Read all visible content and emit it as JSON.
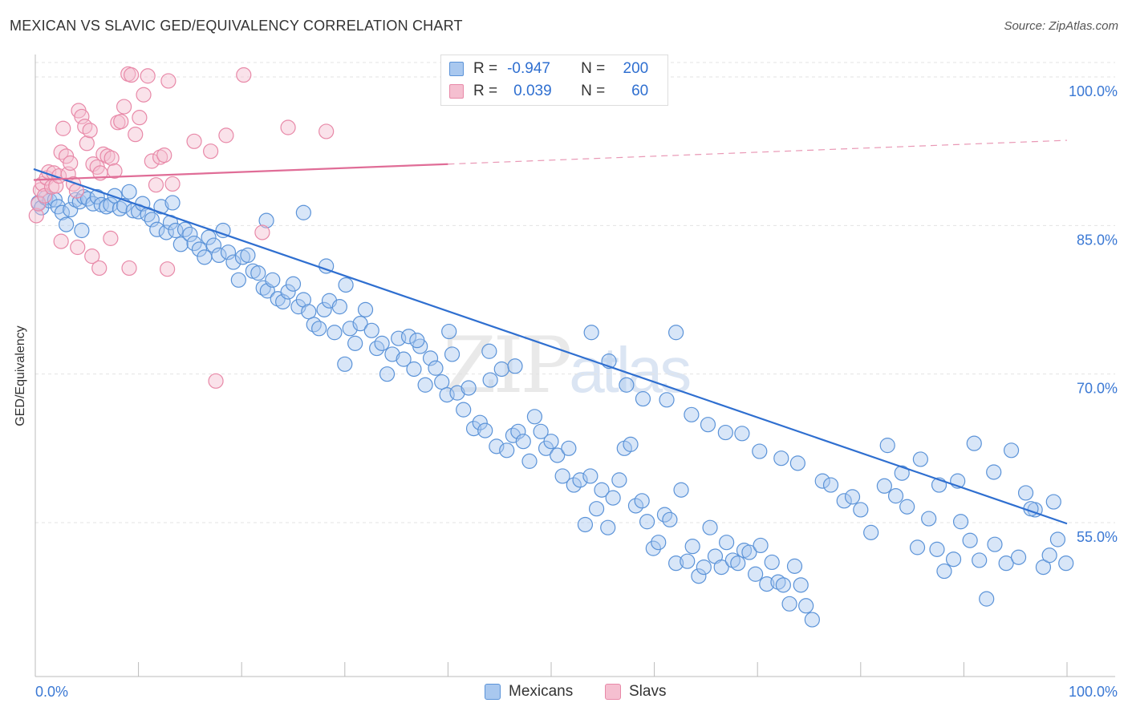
{
  "title": "MEXICAN VS SLAVIC GED/EQUIVALENCY CORRELATION CHART",
  "source": "Source: ZipAtlas.com",
  "watermark": {
    "zip": "ZIP",
    "atlas": "atlas"
  },
  "legend": {
    "rows": [
      {
        "r_label": "R =",
        "r_value": "-0.947",
        "n_label": "N =",
        "n_value": "200"
      },
      {
        "r_label": "R =",
        "r_value": "0.039",
        "n_label": "N =",
        "n_value": "60"
      }
    ]
  },
  "colors": {
    "mexicans_fill": "#a9c8ef",
    "mexicans_stroke": "#5b93d8",
    "mexicans_line": "#2f6fd0",
    "slavs_fill": "#f5bfd0",
    "slavs_stroke": "#e889a8",
    "slavs_line": "#e06d97",
    "axis_text": "#3a78d4"
  },
  "chart_data": {
    "type": "scatter",
    "title": "MEXICAN VS SLAVIC GED/EQUIVALENCY CORRELATION CHART",
    "xlabel": "",
    "ylabel": "GED/Equivalency",
    "xlim": [
      0,
      100
    ],
    "ylim": [
      40,
      102
    ],
    "x_tick_labels": [
      "0.0%",
      "100.0%"
    ],
    "y_ticks": [
      55,
      70,
      85,
      100
    ],
    "y_tick_labels": [
      "55.0%",
      "70.0%",
      "85.0%",
      "100.0%"
    ],
    "grid": "horizontal dashed",
    "legend_position": "bottom-center",
    "series": [
      {
        "name": "Mexicans",
        "trend": {
          "x": [
            0,
            100
          ],
          "y": [
            90.7,
            54.9
          ],
          "style": "solid"
        },
        "points": [
          [
            0.3,
            87.3
          ],
          [
            0.6,
            86.8
          ],
          [
            1.0,
            87.8
          ],
          [
            1.4,
            87.5
          ],
          [
            1.9,
            87.6
          ],
          [
            2.2,
            86.9
          ],
          [
            2.6,
            86.3
          ],
          [
            3.0,
            85.1
          ],
          [
            3.4,
            86.6
          ],
          [
            3.9,
            87.6
          ],
          [
            4.3,
            87.4
          ],
          [
            4.7,
            87.9
          ],
          [
            5.1,
            87.7
          ],
          [
            5.6,
            87.2
          ],
          [
            6.0,
            87.9
          ],
          [
            6.4,
            87.1
          ],
          [
            6.9,
            86.9
          ],
          [
            7.3,
            87.1
          ],
          [
            7.7,
            88.0
          ],
          [
            8.2,
            86.7
          ],
          [
            8.6,
            87.0
          ],
          [
            9.1,
            88.4
          ],
          [
            9.5,
            86.5
          ],
          [
            10.0,
            86.4
          ],
          [
            10.4,
            87.2
          ],
          [
            10.9,
            86.1
          ],
          [
            11.3,
            85.6
          ],
          [
            11.8,
            84.6
          ],
          [
            12.2,
            86.9
          ],
          [
            12.7,
            84.3
          ],
          [
            13.1,
            85.3
          ],
          [
            13.6,
            84.5
          ],
          [
            14.1,
            83.1
          ],
          [
            14.5,
            84.6
          ],
          [
            15.0,
            84.1
          ],
          [
            15.4,
            83.2
          ],
          [
            15.9,
            82.6
          ],
          [
            16.4,
            81.8
          ],
          [
            16.8,
            83.8
          ],
          [
            17.3,
            83.0
          ],
          [
            17.8,
            82.0
          ],
          [
            18.2,
            84.5
          ],
          [
            18.7,
            82.3
          ],
          [
            19.2,
            81.3
          ],
          [
            19.7,
            79.5
          ],
          [
            20.1,
            81.8
          ],
          [
            20.6,
            82.0
          ],
          [
            21.1,
            80.4
          ],
          [
            21.6,
            80.2
          ],
          [
            22.1,
            78.7
          ],
          [
            22.5,
            78.4
          ],
          [
            23.0,
            79.5
          ],
          [
            23.5,
            77.6
          ],
          [
            24.0,
            77.3
          ],
          [
            24.5,
            78.3
          ],
          [
            25.0,
            79.1
          ],
          [
            25.5,
            76.8
          ],
          [
            26.0,
            77.5
          ],
          [
            26.5,
            76.3
          ],
          [
            27.0,
            75.0
          ],
          [
            27.5,
            74.6
          ],
          [
            28.0,
            76.5
          ],
          [
            28.5,
            77.4
          ],
          [
            29.0,
            74.2
          ],
          [
            29.5,
            76.8
          ],
          [
            30.0,
            71.0
          ],
          [
            30.5,
            74.6
          ],
          [
            31.0,
            73.1
          ],
          [
            31.5,
            75.1
          ],
          [
            32.0,
            76.5
          ],
          [
            32.6,
            74.4
          ],
          [
            33.1,
            72.6
          ],
          [
            33.6,
            73.1
          ],
          [
            34.1,
            70.0
          ],
          [
            34.6,
            72.0
          ],
          [
            35.2,
            73.6
          ],
          [
            35.7,
            71.5
          ],
          [
            36.2,
            73.8
          ],
          [
            36.7,
            70.5
          ],
          [
            37.3,
            72.8
          ],
          [
            37.8,
            68.9
          ],
          [
            38.3,
            71.6
          ],
          [
            38.8,
            70.6
          ],
          [
            39.4,
            69.2
          ],
          [
            39.9,
            67.9
          ],
          [
            40.4,
            72.0
          ],
          [
            40.9,
            68.1
          ],
          [
            41.5,
            66.4
          ],
          [
            42.0,
            68.6
          ],
          [
            42.5,
            64.5
          ],
          [
            43.1,
            65.1
          ],
          [
            43.6,
            64.3
          ],
          [
            44.1,
            69.4
          ],
          [
            44.7,
            62.7
          ],
          [
            45.2,
            70.5
          ],
          [
            45.7,
            62.3
          ],
          [
            46.3,
            63.8
          ],
          [
            46.8,
            64.2
          ],
          [
            47.3,
            63.2
          ],
          [
            47.9,
            61.2
          ],
          [
            48.4,
            65.7
          ],
          [
            49.0,
            64.2
          ],
          [
            49.5,
            62.5
          ],
          [
            50.0,
            63.2
          ],
          [
            50.6,
            61.8
          ],
          [
            51.1,
            59.7
          ],
          [
            51.7,
            62.5
          ],
          [
            52.2,
            58.8
          ],
          [
            52.8,
            59.3
          ],
          [
            53.3,
            54.8
          ],
          [
            53.8,
            59.7
          ],
          [
            54.4,
            56.4
          ],
          [
            54.9,
            58.3
          ],
          [
            55.5,
            54.5
          ],
          [
            56.0,
            57.5
          ],
          [
            56.6,
            59.3
          ],
          [
            57.1,
            62.5
          ],
          [
            57.7,
            62.9
          ],
          [
            58.2,
            56.7
          ],
          [
            58.8,
            57.2
          ],
          [
            59.3,
            55.1
          ],
          [
            59.9,
            52.4
          ],
          [
            60.4,
            53.0
          ],
          [
            61.0,
            55.8
          ],
          [
            61.5,
            55.3
          ],
          [
            62.1,
            50.9
          ],
          [
            62.6,
            58.3
          ],
          [
            63.2,
            51.1
          ],
          [
            63.7,
            52.6
          ],
          [
            64.3,
            49.6
          ],
          [
            64.8,
            50.5
          ],
          [
            65.4,
            54.5
          ],
          [
            65.9,
            51.6
          ],
          [
            66.5,
            50.5
          ],
          [
            67.0,
            53.0
          ],
          [
            67.6,
            51.2
          ],
          [
            68.1,
            50.9
          ],
          [
            68.7,
            52.2
          ],
          [
            69.2,
            52.0
          ],
          [
            69.8,
            49.8
          ],
          [
            70.3,
            52.7
          ],
          [
            70.9,
            48.8
          ],
          [
            71.4,
            51.0
          ],
          [
            72.0,
            49.0
          ],
          [
            72.5,
            48.7
          ],
          [
            73.1,
            46.8
          ],
          [
            73.6,
            50.6
          ],
          [
            74.2,
            48.7
          ],
          [
            74.7,
            46.6
          ],
          [
            75.3,
            45.2
          ],
          [
            4.5,
            84.5
          ],
          [
            13.3,
            87.3
          ],
          [
            22.4,
            85.5
          ],
          [
            26.0,
            86.3
          ],
          [
            28.2,
            80.9
          ],
          [
            30.1,
            79.0
          ],
          [
            37.0,
            73.4
          ],
          [
            40.1,
            74.3
          ],
          [
            44.0,
            72.3
          ],
          [
            46.5,
            70.8
          ],
          [
            53.9,
            74.2
          ],
          [
            55.6,
            71.3
          ],
          [
            57.3,
            68.9
          ],
          [
            58.9,
            67.5
          ],
          [
            61.2,
            67.4
          ],
          [
            62.1,
            74.2
          ],
          [
            63.6,
            65.9
          ],
          [
            65.2,
            64.9
          ],
          [
            66.9,
            64.1
          ],
          [
            68.5,
            64.0
          ],
          [
            70.2,
            62.2
          ],
          [
            72.3,
            61.5
          ],
          [
            73.9,
            61.0
          ],
          [
            76.3,
            59.2
          ],
          [
            77.1,
            58.8
          ],
          [
            78.4,
            57.2
          ],
          [
            79.2,
            57.6
          ],
          [
            80.0,
            56.3
          ],
          [
            81.0,
            54.0
          ],
          [
            82.3,
            58.7
          ],
          [
            83.4,
            57.7
          ],
          [
            84.5,
            56.6
          ],
          [
            85.5,
            52.5
          ],
          [
            86.6,
            55.4
          ],
          [
            87.4,
            52.3
          ],
          [
            88.1,
            50.1
          ],
          [
            89.0,
            51.3
          ],
          [
            89.7,
            55.1
          ],
          [
            90.6,
            53.2
          ],
          [
            91.5,
            51.2
          ],
          [
            92.2,
            47.3
          ],
          [
            93.0,
            52.8
          ],
          [
            94.1,
            50.9
          ],
          [
            95.3,
            51.5
          ],
          [
            96.0,
            58.0
          ],
          [
            96.9,
            56.3
          ],
          [
            97.7,
            50.5
          ],
          [
            98.3,
            51.7
          ],
          [
            99.1,
            53.3
          ],
          [
            99.9,
            50.9
          ],
          [
            82.6,
            62.8
          ],
          [
            84.0,
            60.0
          ],
          [
            85.8,
            61.4
          ],
          [
            87.6,
            58.8
          ],
          [
            89.4,
            59.2
          ],
          [
            91.0,
            63.0
          ],
          [
            92.9,
            60.1
          ],
          [
            94.6,
            62.3
          ],
          [
            96.5,
            56.4
          ],
          [
            98.7,
            57.1
          ]
        ]
      },
      {
        "name": "Slavs",
        "trend": {
          "x": [
            0,
            40
          ],
          "y": [
            89.6,
            91.2
          ],
          "style": "solid",
          "extension": {
            "x": [
              40,
              100
            ],
            "y": [
              91.2,
              93.6
            ],
            "style": "dashed"
          }
        },
        "points": [
          [
            0.1,
            86.0
          ],
          [
            0.3,
            87.2
          ],
          [
            0.5,
            88.6
          ],
          [
            0.7,
            89.2
          ],
          [
            0.9,
            88.0
          ],
          [
            1.1,
            89.8
          ],
          [
            1.3,
            90.4
          ],
          [
            1.6,
            88.9
          ],
          [
            1.8,
            90.3
          ],
          [
            2.0,
            89.0
          ],
          [
            2.3,
            90.0
          ],
          [
            2.5,
            92.4
          ],
          [
            2.7,
            94.8
          ],
          [
            3.0,
            92.0
          ],
          [
            3.2,
            90.2
          ],
          [
            3.4,
            91.3
          ],
          [
            3.7,
            89.2
          ],
          [
            4.0,
            88.5
          ],
          [
            4.2,
            96.6
          ],
          [
            4.5,
            96.0
          ],
          [
            4.8,
            95.0
          ],
          [
            5.0,
            93.3
          ],
          [
            5.3,
            94.6
          ],
          [
            5.6,
            91.2
          ],
          [
            6.0,
            90.9
          ],
          [
            6.3,
            90.3
          ],
          [
            6.6,
            92.2
          ],
          [
            7.0,
            92.0
          ],
          [
            7.4,
            91.8
          ],
          [
            7.7,
            90.5
          ],
          [
            8.0,
            95.4
          ],
          [
            8.3,
            95.5
          ],
          [
            8.6,
            97.0
          ],
          [
            9.0,
            100.3
          ],
          [
            9.3,
            100.2
          ],
          [
            9.7,
            94.2
          ],
          [
            10.1,
            95.9
          ],
          [
            10.5,
            98.2
          ],
          [
            10.9,
            100.1
          ],
          [
            11.3,
            91.5
          ],
          [
            11.7,
            89.1
          ],
          [
            12.1,
            91.9
          ],
          [
            12.5,
            92.1
          ],
          [
            12.9,
            99.6
          ],
          [
            13.3,
            89.2
          ],
          [
            2.5,
            83.4
          ],
          [
            4.1,
            82.8
          ],
          [
            5.5,
            81.9
          ],
          [
            6.2,
            80.7
          ],
          [
            7.3,
            83.7
          ],
          [
            9.1,
            80.7
          ],
          [
            12.8,
            80.6
          ],
          [
            15.4,
            93.5
          ],
          [
            17.0,
            92.5
          ],
          [
            18.5,
            94.1
          ],
          [
            20.2,
            100.2
          ],
          [
            22.0,
            84.3
          ],
          [
            24.5,
            94.9
          ],
          [
            28.2,
            94.5
          ],
          [
            17.5,
            69.3
          ]
        ]
      }
    ]
  }
}
